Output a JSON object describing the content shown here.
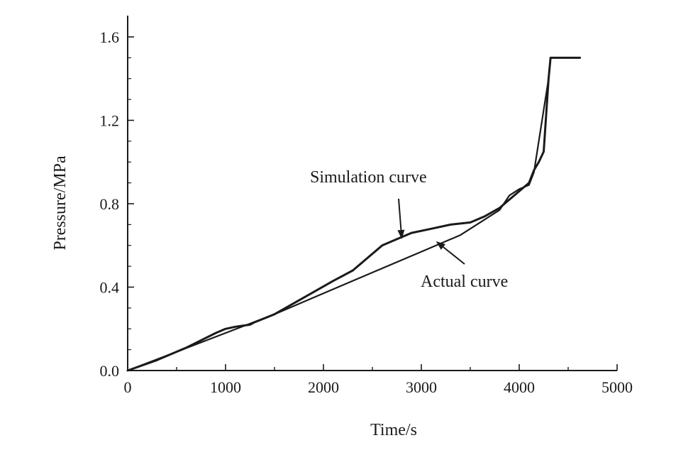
{
  "chart_data": {
    "type": "line",
    "title": "",
    "xlabel": "Time/s",
    "ylabel": "Pressure/MPa",
    "xlim": [
      0,
      5000
    ],
    "ylim": [
      0,
      1.6
    ],
    "x_ticks": [
      0,
      1000,
      2000,
      3000,
      4000,
      5000
    ],
    "y_ticks": [
      0.0,
      0.4,
      0.8,
      1.2,
      1.6
    ],
    "x_tick_labels": [
      "0",
      "1000",
      "2000",
      "3000",
      "4000",
      "5000"
    ],
    "y_tick_labels": [
      "0.0",
      "0.4",
      "0.8",
      "1.2",
      "1.6"
    ],
    "grid": false,
    "legend": "none",
    "series": [
      {
        "name": "Simulation curve",
        "x": [
          0,
          300,
          600,
          900,
          1000,
          1100,
          1250,
          1290,
          1500,
          1800,
          2100,
          2300,
          2450,
          2600,
          2750,
          2900,
          3100,
          3300,
          3500,
          3650,
          3800,
          3900,
          4000,
          4100,
          4150,
          4200,
          4250,
          4300,
          4320,
          4620
        ],
        "y": [
          0.0,
          0.05,
          0.11,
          0.18,
          0.2,
          0.21,
          0.22,
          0.23,
          0.27,
          0.35,
          0.43,
          0.48,
          0.54,
          0.6,
          0.63,
          0.66,
          0.68,
          0.7,
          0.71,
          0.74,
          0.78,
          0.82,
          0.86,
          0.9,
          0.96,
          1.0,
          1.05,
          1.4,
          1.5,
          1.5
        ]
      },
      {
        "name": "Actual curve",
        "x": [
          0,
          500,
          1000,
          1500,
          2000,
          2500,
          3000,
          3400,
          3600,
          3800,
          3900,
          4000,
          4100,
          4150,
          4200,
          4300,
          4320
        ],
        "y": [
          0.0,
          0.09,
          0.18,
          0.27,
          0.37,
          0.47,
          0.57,
          0.65,
          0.71,
          0.77,
          0.84,
          0.87,
          0.89,
          0.95,
          1.1,
          1.4,
          1.5
        ]
      }
    ],
    "annotations": [
      {
        "text": "Simulation curve",
        "arrow_to": [
          2800,
          0.63
        ]
      },
      {
        "text": "Actual curve",
        "arrow_to": [
          3150,
          0.62
        ]
      }
    ]
  }
}
